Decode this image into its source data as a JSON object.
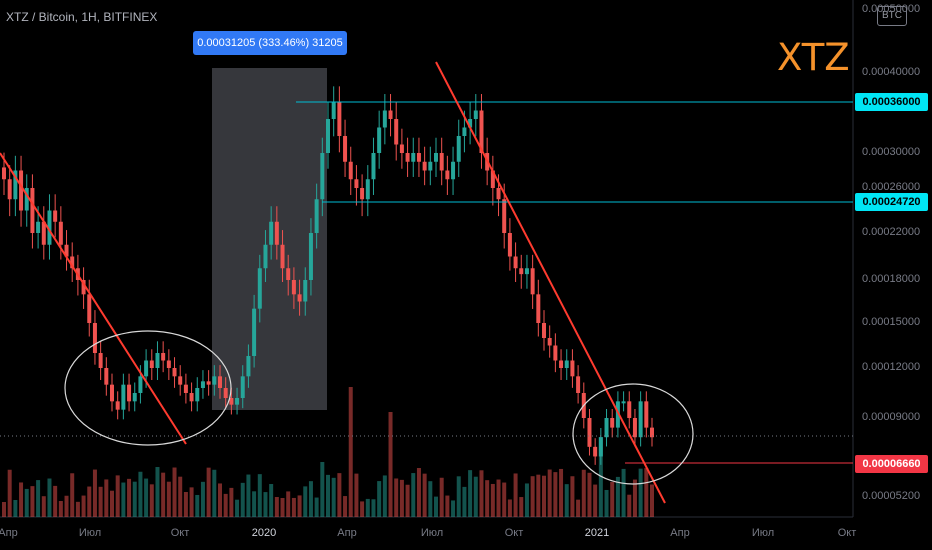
{
  "header": {
    "title": "XTZ / Bitcoin, 1H, BITFINEX"
  },
  "ticker": {
    "label": "XTZ"
  },
  "badge": {
    "label": "BTC"
  },
  "measure": {
    "label": "0.00031205 (333.46%) 31205"
  },
  "price_labels": [
    {
      "value": "0.00036000",
      "kind": "cyan"
    },
    {
      "value": "0.00024720",
      "kind": "cyan"
    },
    {
      "value": "0.00006660",
      "kind": "red"
    }
  ],
  "colors": {
    "up": "#26a69a",
    "down": "#ef5350",
    "trend": "#ff3b2f",
    "level": "#00bcd4",
    "ticker": "#f5922b"
  },
  "chart_data": {
    "type": "candlestick",
    "title": "XTZ / Bitcoin, 1H, BITFINEX",
    "y_ticks": [
      "0.00050000",
      "0.00040000",
      "0.00036000",
      "0.00030000",
      "0.00026000",
      "0.00022000",
      "0.00018000",
      "0.00015000",
      "0.00012000",
      "0.00009000",
      "0.00005200"
    ],
    "x_ticks": [
      "Апр",
      "Июл",
      "Окт",
      "2020",
      "Апр",
      "Июл",
      "Окт",
      "2021",
      "Апр",
      "Июл",
      "Окт"
    ],
    "levels": [
      0.00036,
      0.0002472,
      6.66e-05
    ],
    "measure_range": {
      "low": 9.37e-05,
      "high": 0.0004,
      "change": "0.00031205 (333.46%) 31205"
    },
    "closes": [
      0.00027,
      0.00025,
      0.00028,
      0.00024,
      0.00026,
      0.00022,
      0.00023,
      0.00021,
      0.00024,
      0.00023,
      0.00021,
      0.0002,
      0.00019,
      0.00018,
      0.00017,
      0.00015,
      0.00013,
      0.00012,
      0.00011,
      0.0001,
      9.5e-05,
      0.00011,
      0.0001,
      0.000105,
      0.000115,
      0.000125,
      0.00012,
      0.00013,
      0.000125,
      0.00012,
      0.000115,
      0.00011,
      0.000105,
      0.0001,
      0.000108,
      0.000112,
      0.00011,
      0.000115,
      0.000108,
      0.000102,
      9.8e-05,
      0.000102,
      0.000115,
      0.000128,
      0.00016,
      0.00019,
      0.00021,
      0.00023,
      0.00021,
      0.00019,
      0.00018,
      0.00017,
      0.000165,
      0.00018,
      0.00022,
      0.00025,
      0.0003,
      0.00034,
      0.00036,
      0.00032,
      0.00029,
      0.00027,
      0.00026,
      0.00025,
      0.00027,
      0.0003,
      0.00033,
      0.00035,
      0.00034,
      0.00031,
      0.0003,
      0.00029,
      0.0003,
      0.00029,
      0.00028,
      0.00029,
      0.0003,
      0.00028,
      0.00027,
      0.00029,
      0.00032,
      0.00033,
      0.00034,
      0.00035,
      0.0003,
      0.00028,
      0.00026,
      0.00025,
      0.00022,
      0.0002,
      0.00019,
      0.000185,
      0.00019,
      0.00017,
      0.00015,
      0.00014,
      0.000135,
      0.000125,
      0.00012,
      0.000125,
      0.000115,
      0.000105,
      9e-05,
      7.5e-05,
      7e-05,
      8e-05,
      9e-05,
      8.5e-05,
      0.0001,
      0.0001,
      9e-05,
      8e-05,
      0.0001,
      8.5e-05,
      8e-05
    ]
  }
}
